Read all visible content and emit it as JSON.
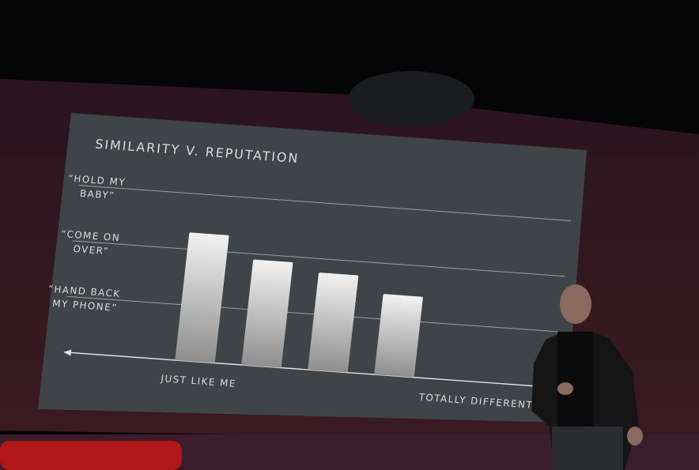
{
  "chart_data": {
    "type": "bar",
    "title": "SIMILARITY V. REPUTATION",
    "categories": [
      null,
      null,
      null,
      null
    ],
    "values": [
      2.3,
      1.9,
      1.75,
      1.45
    ],
    "color": "url(#barfill)",
    "ylim": [
      0,
      3.3
    ],
    "yticks": [
      {
        "value": 1,
        "label": "“HAND BACK MY PHONE”"
      },
      {
        "value": 2,
        "label": "“COME ON OVER”"
      },
      {
        "value": 3,
        "label": "“HOLD MY BABY”"
      }
    ],
    "grid": true,
    "annotations": [
      "JUST LIKE ME",
      "TOTALLY DIFFERENT"
    ]
  }
}
